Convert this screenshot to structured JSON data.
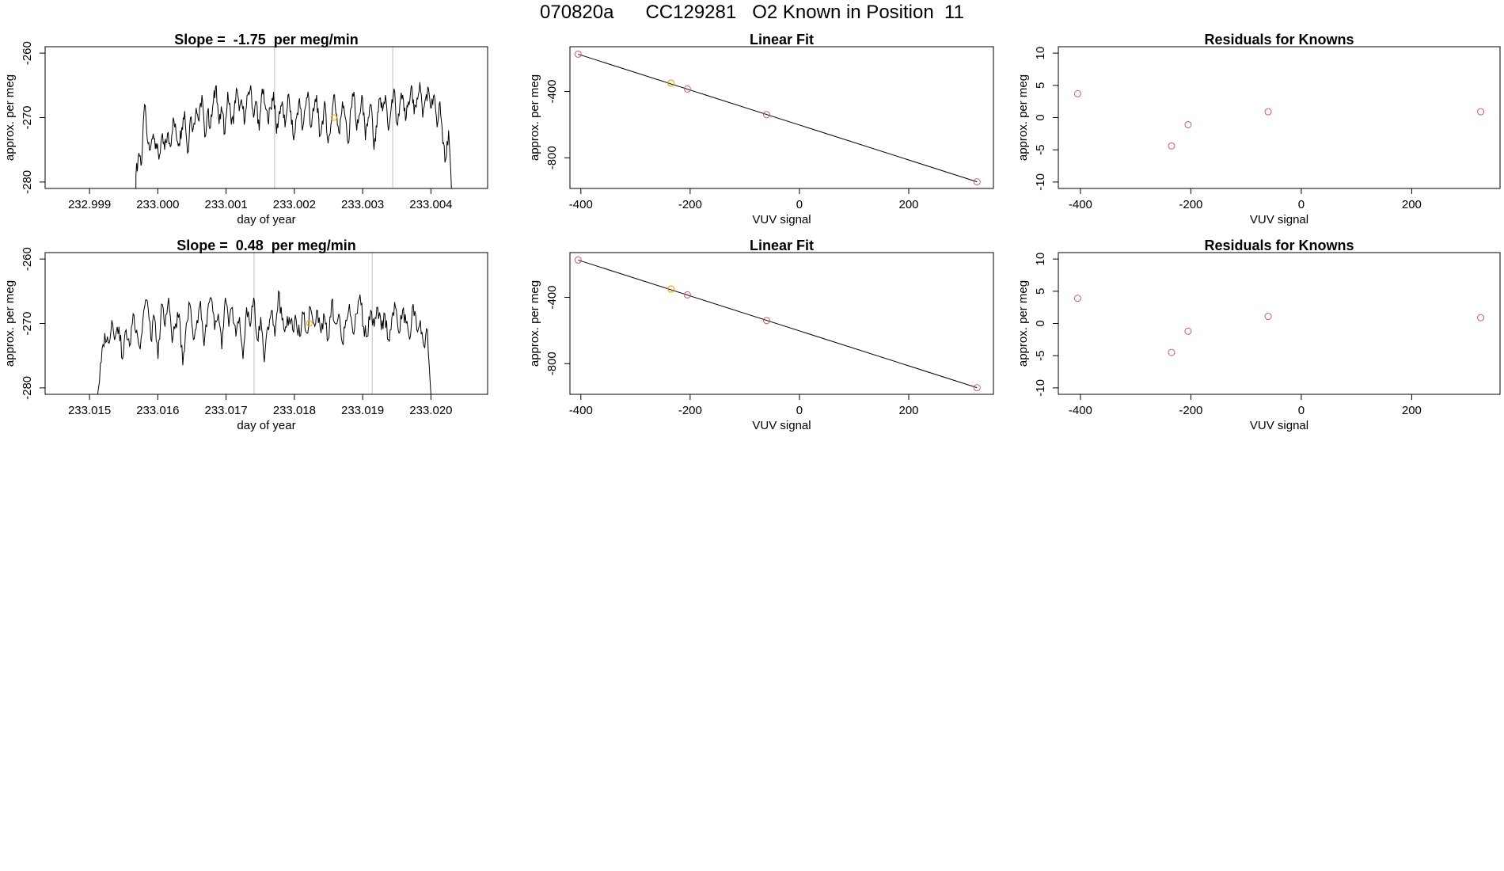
{
  "figure": {
    "title": "070820a      CC129281   O2 Known in Position  11",
    "colors": {
      "line": "#000000",
      "ref_line": "#bebebe",
      "point": "#cd5c5c",
      "highlight": "#ffa500"
    }
  },
  "chart_data": [
    {
      "id": "ts1",
      "type": "line",
      "title": "Slope =  -1.75  per meg/min",
      "xlabel": "day of year",
      "ylabel": "approx. per meg",
      "xlim": [
        232.99835,
        233.00483
      ],
      "ylim": [
        -281,
        -259
      ],
      "xticks": [
        232.999,
        233.0,
        233.001,
        233.002,
        233.003,
        233.004
      ],
      "xtick_labels": [
        "232.999",
        "233.000",
        "233.001",
        "233.002",
        "233.003",
        "233.004"
      ],
      "yticks": [
        -280,
        -270,
        -260
      ],
      "ytick_labels": [
        "-280",
        "-270",
        "-260"
      ],
      "vlines": [
        233.00171,
        233.00344
      ],
      "marker": {
        "x": 233.00258,
        "y": -270,
        "color": "#ffa500"
      },
      "series": {
        "start": 232.99968,
        "end": 233.0043,
        "mean": -269,
        "edge_low": -281,
        "values": [
          -279.0,
          -275.5,
          -277.0,
          -268.0,
          -273.5,
          -275.0,
          -272.5,
          -274.0,
          -276.5,
          -273.0,
          -275.0,
          -272.5,
          -274.5,
          -270.0,
          -272.5,
          -274.0,
          -271.5,
          -269.0,
          -275.5,
          -270.0,
          -271.5,
          -268.5,
          -270.5,
          -266.5,
          -273.0,
          -269.0,
          -271.5,
          -267.5,
          -265.0,
          -271.0,
          -269.0,
          -272.5,
          -266.0,
          -269.5,
          -271.0,
          -265.5,
          -269.0,
          -268.0,
          -270.5,
          -266.5,
          -265.0,
          -270.0,
          -267.5,
          -272.0,
          -265.5,
          -268.0,
          -270.5,
          -268.5,
          -266.0,
          -272.5,
          -269.0,
          -267.5,
          -271.5,
          -266.5,
          -269.0,
          -273.5,
          -270.0,
          -267.0,
          -272.0,
          -268.5,
          -266.0,
          -271.5,
          -269.0,
          -266.5,
          -273.0,
          -270.5,
          -268.0,
          -274.0,
          -271.0,
          -266.5,
          -269.5,
          -272.5,
          -267.5,
          -270.0,
          -274.0,
          -268.5,
          -266.0,
          -272.0,
          -269.5,
          -267.0,
          -273.5,
          -270.0,
          -268.0,
          -275.0,
          -271.5,
          -267.0,
          -269.0,
          -266.5,
          -272.0,
          -268.5,
          -265.5,
          -271.0,
          -268.0,
          -266.5,
          -270.5,
          -267.5,
          -265.0,
          -269.5,
          -267.0,
          -264.5,
          -270.0,
          -267.0,
          -265.5,
          -268.5,
          -266.5,
          -271.5,
          -267.5,
          -274.0,
          -276.5,
          -272.0,
          -281.0
        ]
      }
    },
    {
      "id": "lf1",
      "type": "scatter",
      "title": "Linear Fit",
      "xlabel": "VUV signal",
      "ylabel": "approx. per meg",
      "xlim": [
        -420,
        355
      ],
      "ylim": [
        -985,
        -130
      ],
      "xticks": [
        -400,
        -200,
        0,
        200
      ],
      "xtick_labels": [
        "-400",
        "-200",
        "0",
        "200"
      ],
      "yticks": [
        -800,
        -400
      ],
      "ytick_labels": [
        "-800",
        "-400"
      ],
      "fit_line": {
        "x": [
          -405,
          325
        ],
        "y": [
          -175,
          -945
        ]
      },
      "points": [
        {
          "x": -405,
          "y": -175,
          "color": "#cd5c5c"
        },
        {
          "x": -235,
          "y": -350,
          "color": "#cd5c5c"
        },
        {
          "x": -235,
          "y": -350,
          "color": "#ffa500"
        },
        {
          "x": -205,
          "y": -385,
          "color": "#cd5c5c"
        },
        {
          "x": -60,
          "y": -540,
          "color": "#cd5c5c"
        },
        {
          "x": 325,
          "y": -945,
          "color": "#cd5c5c"
        }
      ]
    },
    {
      "id": "rk1",
      "type": "scatter",
      "title": "Residuals for Knowns",
      "xlabel": "VUV signal",
      "ylabel": "approx. per meg",
      "xlim": [
        -440,
        360
      ],
      "ylim": [
        -11,
        11
      ],
      "xticks": [
        -400,
        -200,
        0,
        200
      ],
      "xtick_labels": [
        "-400",
        "-200",
        "0",
        "200"
      ],
      "yticks": [
        -10,
        -5,
        0,
        5,
        10
      ],
      "ytick_labels": [
        "-10",
        "-5",
        "0",
        "5",
        "10"
      ],
      "points": [
        {
          "x": -405,
          "y": 3.7,
          "color": "#cd5c5c"
        },
        {
          "x": -235,
          "y": -4.4,
          "color": "#cd5c5c"
        },
        {
          "x": -205,
          "y": -1.1,
          "color": "#cd5c5c"
        },
        {
          "x": -60,
          "y": 0.9,
          "color": "#cd5c5c"
        },
        {
          "x": 325,
          "y": 0.9,
          "color": "#cd5c5c"
        }
      ]
    },
    {
      "id": "ts2",
      "type": "line",
      "title": "Slope =  0.48  per meg/min",
      "xlabel": "day of year",
      "ylabel": "approx. per meg",
      "xlim": [
        233.01435,
        233.02083
      ],
      "ylim": [
        -281,
        -259
      ],
      "xticks": [
        233.015,
        233.016,
        233.017,
        233.018,
        233.019,
        233.02
      ],
      "xtick_labels": [
        "233.015",
        "233.016",
        "233.017",
        "233.018",
        "233.019",
        "233.020"
      ],
      "yticks": [
        -280,
        -270,
        -260
      ],
      "ytick_labels": [
        "-280",
        "-270",
        "-260"
      ],
      "vlines": [
        233.01741,
        233.01914
      ],
      "marker": {
        "x": 233.01822,
        "y": -270,
        "color": "#ffa500"
      },
      "series": {
        "start": 233.01512,
        "end": 233.02,
        "mean": -269,
        "edge_low": -281,
        "values": [
          -281.0,
          -276.0,
          -271.5,
          -273.0,
          -269.5,
          -272.0,
          -270.5,
          -275.5,
          -271.0,
          -273.5,
          -268.5,
          -271.0,
          -274.0,
          -268.0,
          -266.5,
          -272.5,
          -269.0,
          -275.5,
          -267.0,
          -270.5,
          -266.0,
          -273.0,
          -270.0,
          -268.5,
          -276.5,
          -270.0,
          -267.0,
          -272.5,
          -269.5,
          -266.5,
          -273.5,
          -268.0,
          -266.0,
          -271.0,
          -268.5,
          -274.0,
          -266.0,
          -270.5,
          -267.5,
          -272.0,
          -269.0,
          -275.5,
          -267.5,
          -270.5,
          -266.0,
          -272.5,
          -269.0,
          -276.0,
          -270.5,
          -268.0,
          -272.0,
          -265.0,
          -269.5,
          -270.5,
          -269.0,
          -271.0,
          -269.5,
          -272.0,
          -268.5,
          -271.5,
          -267.5,
          -270.0,
          -268.0,
          -271.5,
          -269.0,
          -272.5,
          -266.5,
          -270.0,
          -268.5,
          -273.0,
          -269.5,
          -267.0,
          -271.5,
          -268.5,
          -265.5,
          -270.5,
          -272.0,
          -268.0,
          -270.5,
          -267.5,
          -271.0,
          -268.5,
          -272.5,
          -269.0,
          -267.5,
          -271.5,
          -268.0,
          -270.0,
          -272.5,
          -267.0,
          -271.0,
          -269.5,
          -273.5,
          -271.0,
          -281.0
        ]
      }
    },
    {
      "id": "lf2",
      "type": "scatter",
      "title": "Linear Fit",
      "xlabel": "VUV signal",
      "ylabel": "approx. per meg",
      "xlim": [
        -420,
        355
      ],
      "ylim": [
        -985,
        -130
      ],
      "xticks": [
        -400,
        -200,
        0,
        200
      ],
      "xtick_labels": [
        "-400",
        "-200",
        "0",
        "200"
      ],
      "yticks": [
        -800,
        -400
      ],
      "ytick_labels": [
        "-800",
        "-400"
      ],
      "fit_line": {
        "x": [
          -405,
          325
        ],
        "y": [
          -175,
          -945
        ]
      },
      "points": [
        {
          "x": -405,
          "y": -175,
          "color": "#cd5c5c"
        },
        {
          "x": -235,
          "y": -350,
          "color": "#cd5c5c"
        },
        {
          "x": -235,
          "y": -350,
          "color": "#ffa500"
        },
        {
          "x": -205,
          "y": -385,
          "color": "#cd5c5c"
        },
        {
          "x": -60,
          "y": -540,
          "color": "#cd5c5c"
        },
        {
          "x": 325,
          "y": -945,
          "color": "#cd5c5c"
        }
      ]
    },
    {
      "id": "rk2",
      "type": "scatter",
      "title": "Residuals for Knowns",
      "xlabel": "VUV signal",
      "ylabel": "approx. per meg",
      "xlim": [
        -440,
        360
      ],
      "ylim": [
        -11,
        11
      ],
      "xticks": [
        -400,
        -200,
        0,
        200
      ],
      "xtick_labels": [
        "-400",
        "-200",
        "0",
        "200"
      ],
      "yticks": [
        -10,
        -5,
        0,
        5,
        10
      ],
      "ytick_labels": [
        "-10",
        "-5",
        "0",
        "5",
        "10"
      ],
      "points": [
        {
          "x": -405,
          "y": 3.9,
          "color": "#cd5c5c"
        },
        {
          "x": -235,
          "y": -4.5,
          "color": "#cd5c5c"
        },
        {
          "x": -205,
          "y": -1.2,
          "color": "#cd5c5c"
        },
        {
          "x": -60,
          "y": 1.1,
          "color": "#cd5c5c"
        },
        {
          "x": 325,
          "y": 0.9,
          "color": "#cd5c5c"
        }
      ]
    }
  ]
}
